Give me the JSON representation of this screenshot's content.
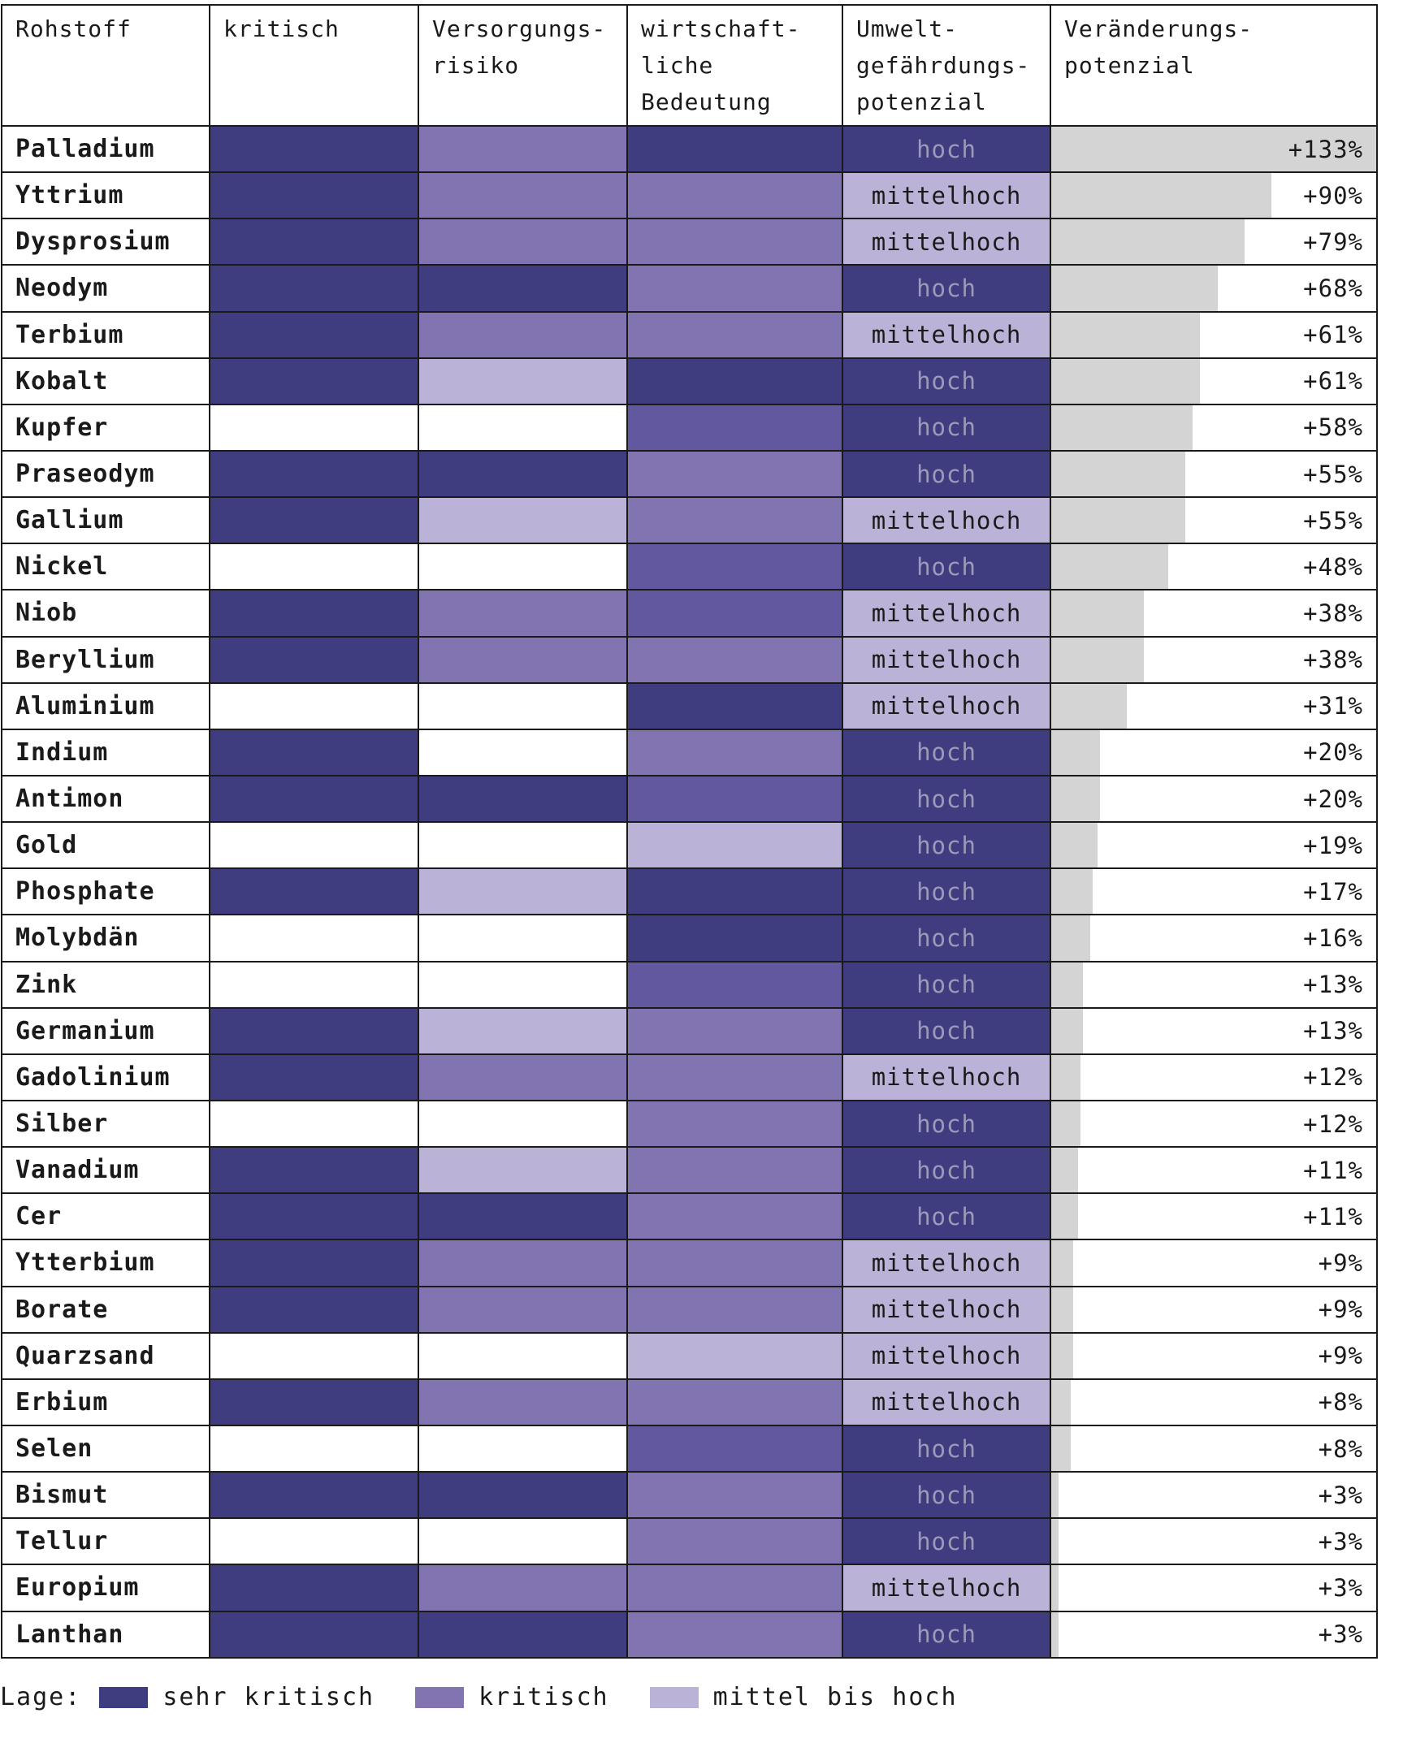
{
  "header": {
    "rohstoff": "Rohstoff",
    "kritisch": "kritisch",
    "versorgung": "Versorgungs-\nrisiko",
    "wirtschaft": "wirtschaft-\nliche\nBedeutung",
    "umwelt": "Umwelt-\ngefährdungs-\npotenzial",
    "veraenderung": "Veränderungs-\npotenzial"
  },
  "colors": {
    "sehr_kritisch": "#3f3d80",
    "kritisch": "#8174b1",
    "mittel_bis_hoch": "#bbb2d8",
    "wirtschaft_mid": "#6258a0",
    "none": "#ffffff",
    "bar": "#d4d4d4"
  },
  "legend": {
    "title": "Lage:",
    "items": [
      {
        "label": "sehr kritisch",
        "color_key": "sehr_kritisch"
      },
      {
        "label": "kritisch",
        "color_key": "kritisch"
      },
      {
        "label": "mittel bis hoch",
        "color_key": "mittel_bis_hoch"
      }
    ]
  },
  "chart_data": {
    "type": "table",
    "max_change": 133,
    "rows": [
      {
        "name": "Palladium",
        "kritisch": "sehr_kritisch",
        "versorgung": "kritisch",
        "wirtschaft": "sehr_kritisch",
        "umwelt": "hoch",
        "change": 133,
        "change_label": "+133%"
      },
      {
        "name": "Yttrium",
        "kritisch": "sehr_kritisch",
        "versorgung": "kritisch",
        "wirtschaft": "kritisch",
        "umwelt": "mittelhoch",
        "change": 90,
        "change_label": "+90%"
      },
      {
        "name": "Dysprosium",
        "kritisch": "sehr_kritisch",
        "versorgung": "kritisch",
        "wirtschaft": "kritisch",
        "umwelt": "mittelhoch",
        "change": 79,
        "change_label": "+79%"
      },
      {
        "name": "Neodym",
        "kritisch": "sehr_kritisch",
        "versorgung": "sehr_kritisch",
        "wirtschaft": "kritisch",
        "umwelt": "hoch",
        "change": 68,
        "change_label": "+68%"
      },
      {
        "name": "Terbium",
        "kritisch": "sehr_kritisch",
        "versorgung": "kritisch",
        "wirtschaft": "kritisch",
        "umwelt": "mittelhoch",
        "change": 61,
        "change_label": "+61%"
      },
      {
        "name": "Kobalt",
        "kritisch": "sehr_kritisch",
        "versorgung": "mittel_bis_hoch",
        "wirtschaft": "sehr_kritisch",
        "umwelt": "hoch",
        "change": 61,
        "change_label": "+61%"
      },
      {
        "name": "Kupfer",
        "kritisch": "none",
        "versorgung": "none",
        "wirtschaft": "wirtschaft_mid",
        "umwelt": "hoch",
        "change": 58,
        "change_label": "+58%"
      },
      {
        "name": "Praseodym",
        "kritisch": "sehr_kritisch",
        "versorgung": "sehr_kritisch",
        "wirtschaft": "kritisch",
        "umwelt": "hoch",
        "change": 55,
        "change_label": "+55%"
      },
      {
        "name": "Gallium",
        "kritisch": "sehr_kritisch",
        "versorgung": "mittel_bis_hoch",
        "wirtschaft": "kritisch",
        "umwelt": "mittelhoch",
        "change": 55,
        "change_label": "+55%"
      },
      {
        "name": "Nickel",
        "kritisch": "none",
        "versorgung": "none",
        "wirtschaft": "wirtschaft_mid",
        "umwelt": "hoch",
        "change": 48,
        "change_label": "+48%"
      },
      {
        "name": "Niob",
        "kritisch": "sehr_kritisch",
        "versorgung": "kritisch",
        "wirtschaft": "wirtschaft_mid",
        "umwelt": "mittelhoch",
        "change": 38,
        "change_label": "+38%"
      },
      {
        "name": "Beryllium",
        "kritisch": "sehr_kritisch",
        "versorgung": "kritisch",
        "wirtschaft": "kritisch",
        "umwelt": "mittelhoch",
        "change": 38,
        "change_label": "+38%"
      },
      {
        "name": "Aluminium",
        "kritisch": "none",
        "versorgung": "none",
        "wirtschaft": "sehr_kritisch",
        "umwelt": "mittelhoch",
        "change": 31,
        "change_label": "+31%"
      },
      {
        "name": "Indium",
        "kritisch": "sehr_kritisch",
        "versorgung": "none",
        "wirtschaft": "kritisch",
        "umwelt": "hoch",
        "change": 20,
        "change_label": "+20%"
      },
      {
        "name": "Antimon",
        "kritisch": "sehr_kritisch",
        "versorgung": "sehr_kritisch",
        "wirtschaft": "wirtschaft_mid",
        "umwelt": "hoch",
        "change": 20,
        "change_label": "+20%"
      },
      {
        "name": "Gold",
        "kritisch": "none",
        "versorgung": "none",
        "wirtschaft": "mittel_bis_hoch",
        "umwelt": "hoch",
        "change": 19,
        "change_label": "+19%"
      },
      {
        "name": "Phosphate",
        "kritisch": "sehr_kritisch",
        "versorgung": "mittel_bis_hoch",
        "wirtschaft": "sehr_kritisch",
        "umwelt": "hoch",
        "change": 17,
        "change_label": "+17%"
      },
      {
        "name": "Molybdän",
        "kritisch": "none",
        "versorgung": "none",
        "wirtschaft": "sehr_kritisch",
        "umwelt": "hoch",
        "change": 16,
        "change_label": "+16%"
      },
      {
        "name": "Zink",
        "kritisch": "none",
        "versorgung": "none",
        "wirtschaft": "wirtschaft_mid",
        "umwelt": "hoch",
        "change": 13,
        "change_label": "+13%"
      },
      {
        "name": "Germanium",
        "kritisch": "sehr_kritisch",
        "versorgung": "mittel_bis_hoch",
        "wirtschaft": "kritisch",
        "umwelt": "hoch",
        "change": 13,
        "change_label": "+13%"
      },
      {
        "name": "Gadolinium",
        "kritisch": "sehr_kritisch",
        "versorgung": "kritisch",
        "wirtschaft": "kritisch",
        "umwelt": "mittelhoch",
        "change": 12,
        "change_label": "+12%"
      },
      {
        "name": "Silber",
        "kritisch": "none",
        "versorgung": "none",
        "wirtschaft": "kritisch",
        "umwelt": "hoch",
        "change": 12,
        "change_label": "+12%"
      },
      {
        "name": "Vanadium",
        "kritisch": "sehr_kritisch",
        "versorgung": "mittel_bis_hoch",
        "wirtschaft": "kritisch",
        "umwelt": "hoch",
        "change": 11,
        "change_label": "+11%"
      },
      {
        "name": "Cer",
        "kritisch": "sehr_kritisch",
        "versorgung": "sehr_kritisch",
        "wirtschaft": "kritisch",
        "umwelt": "hoch",
        "change": 11,
        "change_label": "+11%"
      },
      {
        "name": "Ytterbium",
        "kritisch": "sehr_kritisch",
        "versorgung": "kritisch",
        "wirtschaft": "kritisch",
        "umwelt": "mittelhoch",
        "change": 9,
        "change_label": "+9%"
      },
      {
        "name": "Borate",
        "kritisch": "sehr_kritisch",
        "versorgung": "kritisch",
        "wirtschaft": "kritisch",
        "umwelt": "mittelhoch",
        "change": 9,
        "change_label": "+9%"
      },
      {
        "name": "Quarzsand",
        "kritisch": "none",
        "versorgung": "none",
        "wirtschaft": "mittel_bis_hoch",
        "umwelt": "mittelhoch",
        "change": 9,
        "change_label": "+9%"
      },
      {
        "name": "Erbium",
        "kritisch": "sehr_kritisch",
        "versorgung": "kritisch",
        "wirtschaft": "kritisch",
        "umwelt": "mittelhoch",
        "change": 8,
        "change_label": "+8%"
      },
      {
        "name": "Selen",
        "kritisch": "none",
        "versorgung": "none",
        "wirtschaft": "wirtschaft_mid",
        "umwelt": "hoch",
        "change": 8,
        "change_label": "+8%"
      },
      {
        "name": "Bismut",
        "kritisch": "sehr_kritisch",
        "versorgung": "sehr_kritisch",
        "wirtschaft": "kritisch",
        "umwelt": "hoch",
        "change": 3,
        "change_label": "+3%"
      },
      {
        "name": "Tellur",
        "kritisch": "none",
        "versorgung": "none",
        "wirtschaft": "kritisch",
        "umwelt": "hoch",
        "change": 3,
        "change_label": "+3%"
      },
      {
        "name": "Europium",
        "kritisch": "sehr_kritisch",
        "versorgung": "kritisch",
        "wirtschaft": "kritisch",
        "umwelt": "mittelhoch",
        "change": 3,
        "change_label": "+3%"
      },
      {
        "name": "Lanthan",
        "kritisch": "sehr_kritisch",
        "versorgung": "sehr_kritisch",
        "wirtschaft": "kritisch",
        "umwelt": "hoch",
        "change": 3,
        "change_label": "+3%"
      }
    ]
  }
}
